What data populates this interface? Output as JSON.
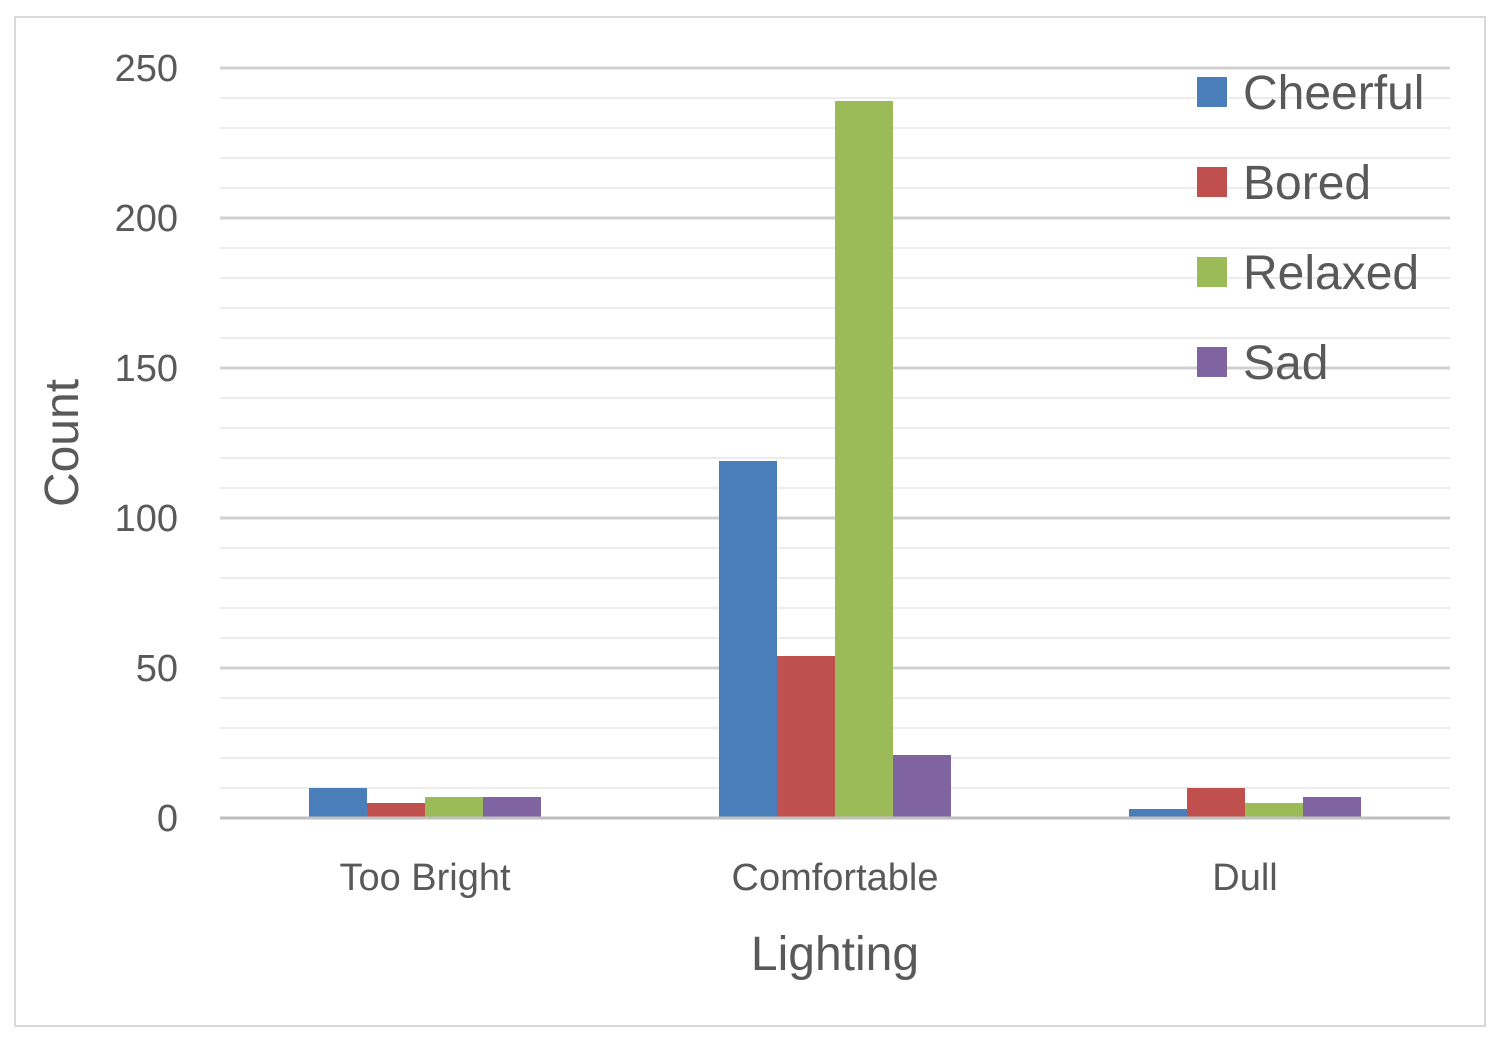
{
  "chart_data": {
    "type": "bar",
    "xlabel": "Lighting",
    "ylabel": "Count",
    "categories": [
      "Too Bright",
      "Comfortable",
      "Dull"
    ],
    "ylim": [
      0,
      250
    ],
    "y_ticks": [
      0,
      50,
      100,
      150,
      200,
      250
    ],
    "minor_grid_step": 10,
    "grid": true,
    "legend_position": "top-right",
    "series": [
      {
        "name": "Cheerful",
        "color": "#4a7ebb",
        "values": [
          10,
          119,
          3
        ]
      },
      {
        "name": "Bored",
        "color": "#c0504d",
        "values": [
          5,
          54,
          10
        ]
      },
      {
        "name": "Relaxed",
        "color": "#9bbb59",
        "values": [
          7,
          239,
          5
        ]
      },
      {
        "name": "Sad",
        "color": "#8064a2",
        "values": [
          7,
          21,
          7
        ]
      }
    ]
  }
}
